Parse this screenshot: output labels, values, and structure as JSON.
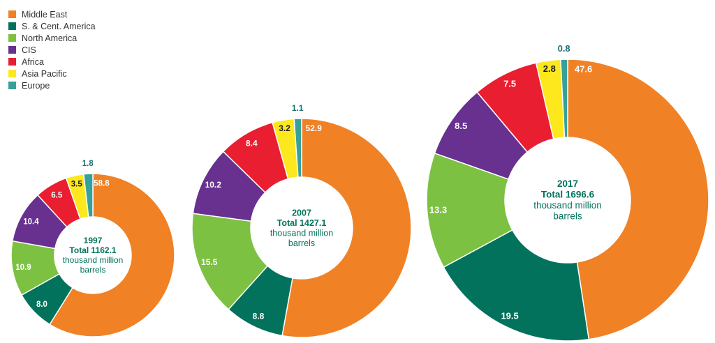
{
  "legend": [
    {
      "name": "Middle East",
      "color": "#F08125"
    },
    {
      "name": "S. & Cent. America",
      "color": "#02725C"
    },
    {
      "name": "North America",
      "color": "#7DC142"
    },
    {
      "name": "CIS",
      "color": "#68308F"
    },
    {
      "name": "Africa",
      "color": "#E91E30"
    },
    {
      "name": "Asia Pacific",
      "color": "#FCE81C"
    },
    {
      "name": "Europe",
      "color": "#36A19A"
    }
  ],
  "chart_data": [
    {
      "type": "pie",
      "year": "1997",
      "total_label": "Total 1162.1",
      "unit_line1": "thousand million",
      "unit_line2": "barrels",
      "categories": [
        "Middle East",
        "S. & Cent. America",
        "North America",
        "CIS",
        "Africa",
        "Asia Pacific",
        "Europe"
      ],
      "values": [
        58.8,
        8.0,
        10.9,
        10.4,
        6.5,
        3.5,
        1.8
      ],
      "labels": [
        "58.8",
        "8.0",
        "10.9",
        "10.4",
        "6.5",
        "3.5",
        "1.8"
      ]
    },
    {
      "type": "pie",
      "year": "2007",
      "total_label": "Total 1427.1",
      "unit_line1": "thousand million",
      "unit_line2": "barrels",
      "categories": [
        "Middle East",
        "S. & Cent. America",
        "North America",
        "CIS",
        "Africa",
        "Asia Pacific",
        "Europe"
      ],
      "values": [
        52.9,
        8.8,
        15.5,
        10.2,
        8.4,
        3.2,
        1.1
      ],
      "labels": [
        "52.9",
        "8.8",
        "15.5",
        "10.2",
        "8.4",
        "3.2",
        "1.1"
      ]
    },
    {
      "type": "pie",
      "year": "2017",
      "total_label": "Total 1696.6",
      "unit_line1": "thousand million",
      "unit_line2": "barrels",
      "categories": [
        "Middle East",
        "S. & Cent. America",
        "North America",
        "CIS",
        "Africa",
        "Asia Pacific",
        "Europe"
      ],
      "values": [
        47.6,
        19.5,
        13.3,
        8.5,
        7.5,
        2.8,
        0.8
      ],
      "labels": [
        "47.6",
        "19.5",
        "13.3",
        "8.5",
        "7.5",
        "2.8",
        "0.8"
      ]
    }
  ]
}
